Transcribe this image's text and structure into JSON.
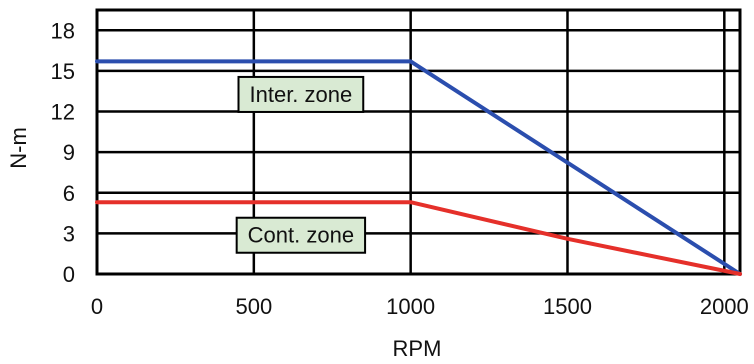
{
  "chart_data": {
    "type": "line",
    "xlabel": "RPM",
    "ylabel": "N-m",
    "xlim": [
      0,
      2050
    ],
    "ylim": [
      0,
      19.5
    ],
    "xticks": [
      0,
      500,
      1000,
      1500,
      2000
    ],
    "yticks": [
      0,
      3,
      6,
      9,
      12,
      15,
      18
    ],
    "grid": true,
    "series": [
      {
        "x": [
          0,
          1000,
          2050
        ],
        "y": [
          15.7,
          15.7,
          0
        ],
        "color": "#2b4eae"
      },
      {
        "x": [
          0,
          1000,
          1500,
          2050
        ],
        "y": [
          5.3,
          5.3,
          2.6,
          0
        ],
        "color": "#e5302a"
      }
    ],
    "annotations": [
      {
        "text": "Inter. zone",
        "x": 650,
        "y": 13.3,
        "fill": "#d9ead3"
      },
      {
        "text": "Cont. zone",
        "x": 650,
        "y": 2.9,
        "fill": "#d9ead3"
      }
    ]
  }
}
